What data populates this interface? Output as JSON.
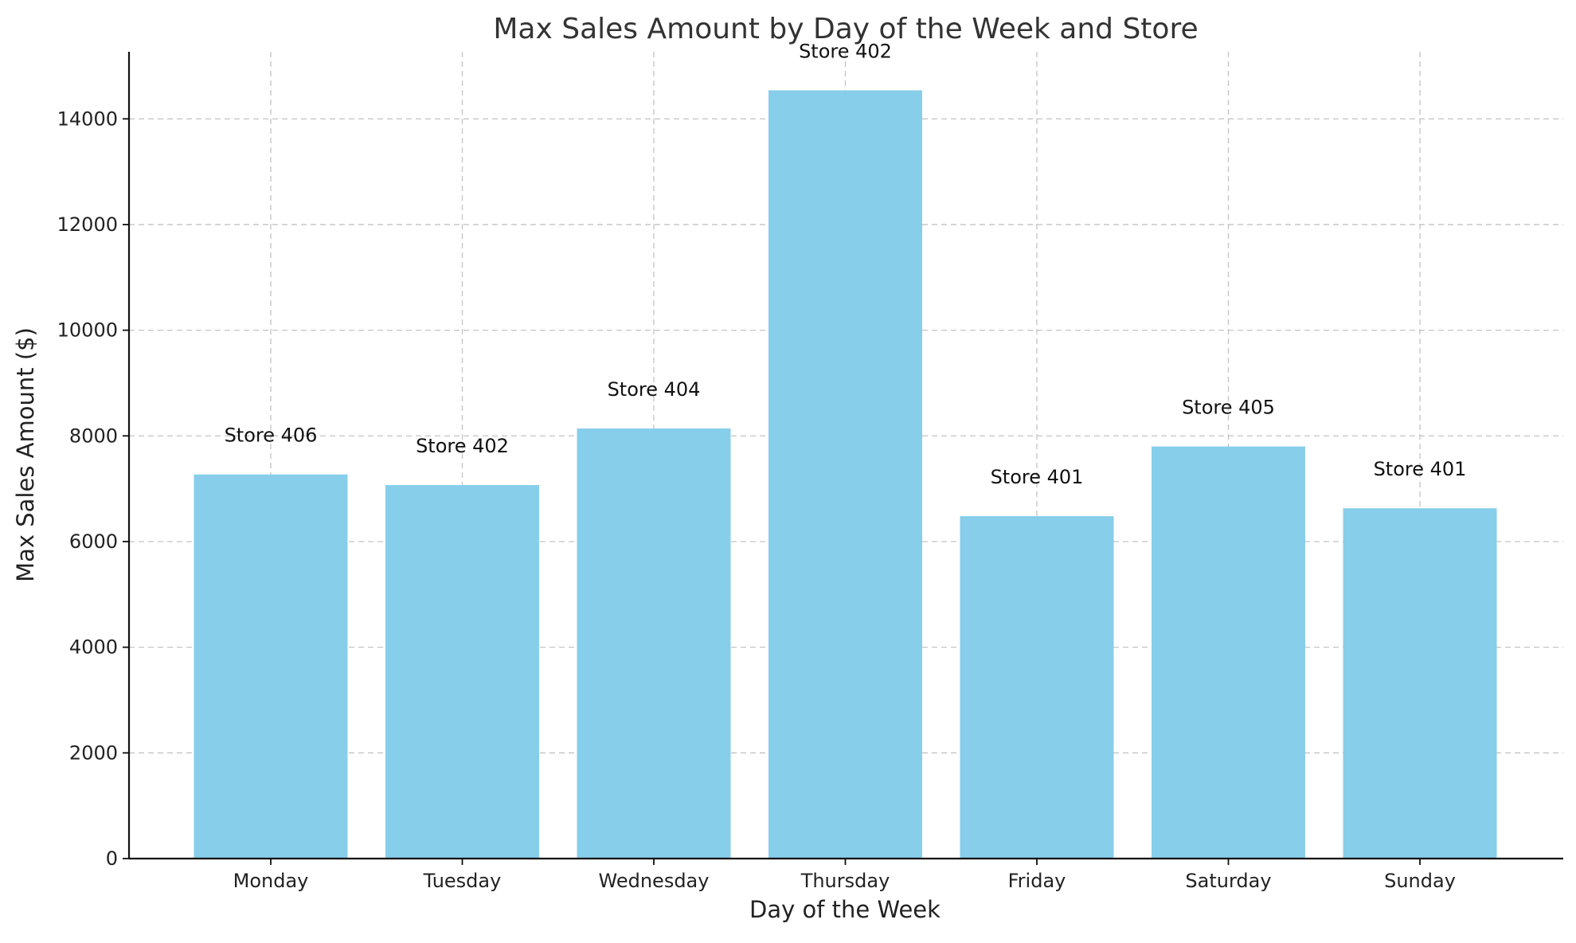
{
  "chart_data": {
    "type": "bar",
    "title": "Max Sales Amount by Day of the Week and Store",
    "xlabel": "Day of the Week",
    "ylabel": "Max Sales Amount ($)",
    "categories": [
      "Monday",
      "Tuesday",
      "Wednesday",
      "Thursday",
      "Friday",
      "Saturday",
      "Sunday"
    ],
    "values": [
      7270,
      7070,
      8140,
      14540,
      6480,
      7800,
      6630
    ],
    "annotations": [
      "Store 406",
      "Store 402",
      "Store 404",
      "Store 402",
      "Store 401",
      "Store 405",
      "Store 401"
    ],
    "ylim": [
      0,
      15270
    ],
    "yticks": [
      0,
      2000,
      4000,
      6000,
      8000,
      10000,
      12000,
      14000
    ],
    "grid": true,
    "bar_color": "#87CEEB"
  }
}
